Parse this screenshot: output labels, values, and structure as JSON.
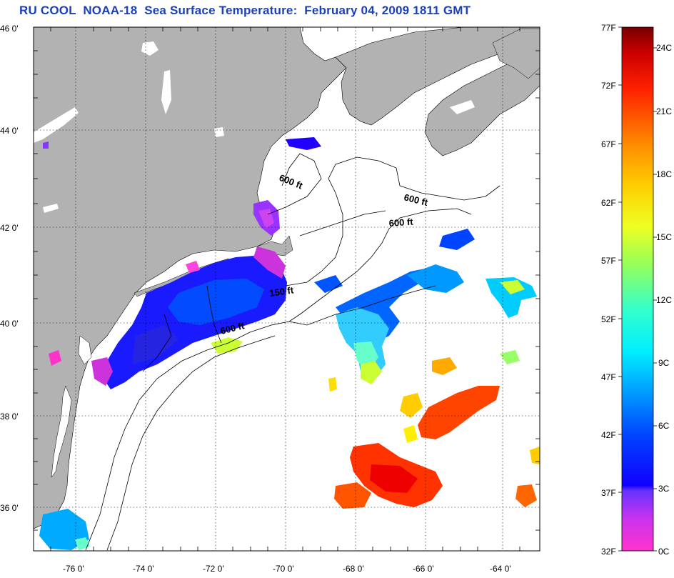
{
  "title": "RU COOL  NOAA-18  Sea Surface Temperature:  February 04, 2009 1811 GMT",
  "map": {
    "lat_ticks": [
      "46 0'",
      "44 0'",
      "42 0'",
      "40 0'",
      "38 0'",
      "36 0'"
    ],
    "lon_ticks": [
      "-76 0'",
      "-74 0'",
      "-72 0'",
      "-70 0'",
      "-68 0'",
      "-66 0'",
      "-64 0'"
    ],
    "contour_labels": [
      "600 ft",
      "600 ft",
      "600 ft",
      "150 ft",
      "600 ft"
    ]
  },
  "colorbar": {
    "fahrenheit": [
      "77F",
      "72F",
      "67F",
      "62F",
      "57F",
      "52F",
      "47F",
      "42F",
      "37F",
      "32F"
    ],
    "celsius": [
      "24C",
      "21C",
      "18C",
      "15C",
      "12C",
      "9C",
      "6C",
      "3C",
      "0C"
    ]
  },
  "colors": {
    "land": "#b2b2b2",
    "title": "#1a3fbf",
    "scale": [
      "#ff33cc",
      "#9933ff",
      "#2200ff",
      "#0066ff",
      "#00ccff",
      "#33ffcc",
      "#ccff33",
      "#ffee00",
      "#ff9900",
      "#ff3300",
      "#dd0000",
      "#880000"
    ]
  }
}
